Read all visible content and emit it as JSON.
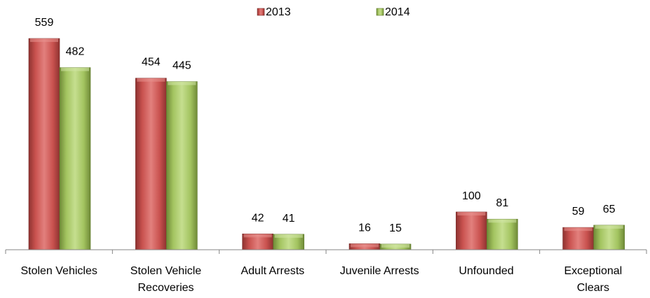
{
  "chart_data": {
    "type": "bar",
    "title": "",
    "xlabel": "",
    "ylabel": "",
    "ylim": [
      0,
      600
    ],
    "grid": false,
    "legend": "top-center",
    "categories": [
      [
        "Stolen Vehicles"
      ],
      [
        "Stolen Vehicle",
        "Recoveries"
      ],
      [
        "Adult Arrests"
      ],
      [
        "Juvenile Arrests"
      ],
      [
        "Unfounded"
      ],
      [
        "Exceptional",
        "Clears"
      ]
    ],
    "series": [
      {
        "name": "2013",
        "values": [
          559,
          454,
          42,
          16,
          100,
          59
        ],
        "color": "#c0504d"
      },
      {
        "name": "2014",
        "values": [
          482,
          445,
          41,
          15,
          81,
          65
        ],
        "color": "#9bbb59"
      }
    ]
  }
}
